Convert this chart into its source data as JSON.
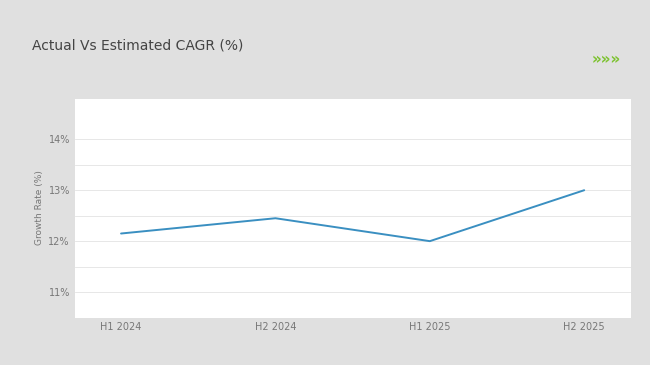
{
  "title": "Actual Vs Estimated CAGR (%)",
  "x_labels": [
    "H1 2024",
    "H2 2024",
    "H1 2025",
    "H2 2025"
  ],
  "y_values": [
    12.15,
    12.45,
    12.0,
    13.0
  ],
  "x_positions": [
    0,
    1,
    2,
    3
  ],
  "ylabel": "Growth Rate (%)",
  "ylim": [
    10.5,
    14.8
  ],
  "yticks": [
    11.0,
    11.5,
    12.0,
    12.5,
    13.0,
    13.5,
    14.0
  ],
  "ytick_labels": [
    "11%",
    "",
    "12%",
    "",
    "13%",
    "",
    "14%"
  ],
  "line_color": "#3A8FC1",
  "bg_outer": "#E0E0E0",
  "bg_card": "#FFFFFF",
  "bg_inner": "#FFFFFF",
  "title_fontsize": 10,
  "title_color": "#444444",
  "green_bar_color": "#8DC63F",
  "chevron_color": "#7DC230",
  "axis_label_fontsize": 6.5,
  "tick_fontsize": 7.0,
  "grid_color": "#DDDDDD"
}
